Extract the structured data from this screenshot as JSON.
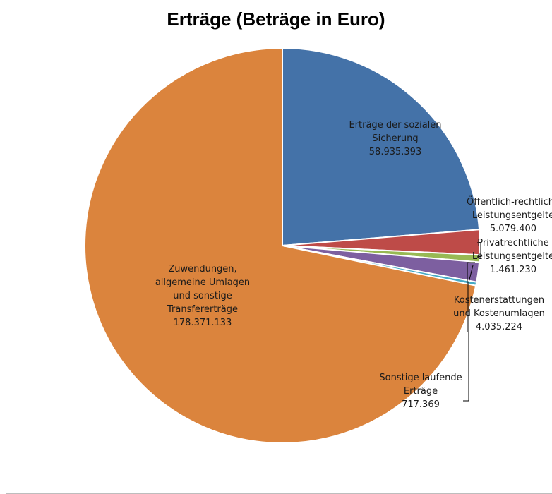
{
  "chart_data": {
    "type": "pie",
    "title": "Erträge (Beträge in Euro)",
    "start_angle_deg": 0,
    "direction": "clockwise",
    "slices": [
      {
        "label_lines": [
          "Erträge der sozialen",
          "Sicherung"
        ],
        "value": 58935393,
        "value_text": "58.935.393",
        "color": "#4472a8"
      },
      {
        "label_lines": [
          "Öffentlich-rechtliche",
          "Leistungsentgelte"
        ],
        "value": 5079400,
        "value_text": "5.079.400",
        "color": "#be4b48"
      },
      {
        "label_lines": [
          "Privatrechtliche",
          "Leistungsentgelte"
        ],
        "value": 1461230,
        "value_text": "1.461.230",
        "color": "#98b954"
      },
      {
        "label_lines": [
          "Kostenerstattungen",
          "und Kostenumlagen"
        ],
        "value": 4035224,
        "value_text": "4.035.224",
        "color": "#7d5fa0"
      },
      {
        "label_lines": [
          "Sonstige laufende",
          "Erträge"
        ],
        "value": 717369,
        "value_text": "717.369",
        "color": "#46aac5"
      },
      {
        "label_lines": [
          "Zuwendungen,",
          "allgemeine Umlagen",
          "und sonstige",
          "Transfererträge"
        ],
        "value": 178371133,
        "value_text": "178.371.133",
        "color": "#db843d"
      }
    ]
  }
}
